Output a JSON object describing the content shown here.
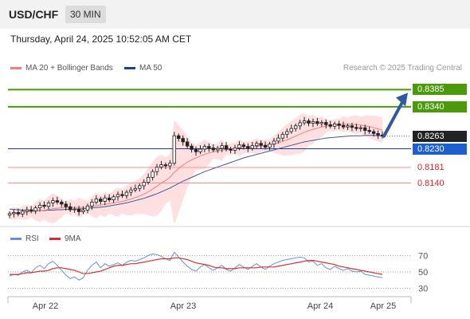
{
  "header": {
    "symbol": "USD/CHF",
    "timeframe": "30 MIN"
  },
  "timestamp": "Thursday, April 24, 2025 10:52:05 AM CET",
  "legend": {
    "ma20": "MA 20 + Bollinger Bands",
    "ma50": "MA 50",
    "credit": "Research © 2025 Trading Central"
  },
  "indicator_legend": {
    "rsi": "RSI",
    "ma9": "9MA"
  },
  "colors": {
    "resistance": "#4a9a0a",
    "support": "#1f3f8f",
    "weak_support": "#ff8f8f",
    "ma20": "#f08080",
    "ma50": "#3a5a9a",
    "bands": "#ffd9d9",
    "rsi": "#6a8fd8",
    "rsi_ma": "#d83030",
    "arrow": "#2e5aa0",
    "current": "#222222"
  },
  "levels": [
    {
      "value": 0.8385,
      "label": "0.8385",
      "style": "resistance"
    },
    {
      "value": 0.834,
      "label": "0.8340",
      "style": "resistance"
    },
    {
      "value": 0.8263,
      "label": "0.8263",
      "style": "current"
    },
    {
      "value": 0.823,
      "label": "0.8230",
      "style": "support"
    },
    {
      "value": 0.8181,
      "label": "0.8181",
      "style": "weak"
    },
    {
      "value": 0.814,
      "label": "0.8140",
      "style": "weak"
    }
  ],
  "rsi_levels": [
    "70",
    "50",
    "30"
  ],
  "x_ticks": [
    "Apr 22",
    "Apr 23",
    "Apr 24",
    "Apr 25"
  ],
  "chart_data": {
    "type": "candlestick",
    "interval": "30 MIN",
    "ylim": [
      0.8045,
      0.8415
    ],
    "closes": [
      0.806,
      0.8063,
      0.8059,
      0.8066,
      0.807,
      0.8067,
      0.8075,
      0.8082,
      0.8079,
      0.8088,
      0.8094,
      0.809,
      0.8085,
      0.8078,
      0.807,
      0.8072,
      0.8065,
      0.8069,
      0.808,
      0.809,
      0.8098,
      0.8092,
      0.8101,
      0.8096,
      0.8104,
      0.811,
      0.8107,
      0.8116,
      0.8122,
      0.8126,
      0.8133,
      0.8142,
      0.8155,
      0.817,
      0.8182,
      0.8188,
      0.8185,
      0.8192,
      0.8264,
      0.8257,
      0.8248,
      0.8237,
      0.8228,
      0.8222,
      0.8229,
      0.8236,
      0.8232,
      0.8227,
      0.8231,
      0.8238,
      0.8229,
      0.8226,
      0.8232,
      0.824,
      0.8236,
      0.8231,
      0.8238,
      0.8244,
      0.8239,
      0.8234,
      0.8242,
      0.825,
      0.8258,
      0.8268,
      0.8275,
      0.8283,
      0.829,
      0.8298,
      0.8303,
      0.8297,
      0.8301,
      0.8296,
      0.8299,
      0.8293,
      0.8289,
      0.8295,
      0.8291,
      0.8287,
      0.829,
      0.8286,
      0.8283,
      0.8285,
      0.8278,
      0.8275,
      0.827,
      0.8266,
      0.8263
    ],
    "ma20": [
      0.8058,
      0.806,
      0.8061,
      0.8062,
      0.8064,
      0.8065,
      0.8066,
      0.8068,
      0.8069,
      0.8071,
      0.8073,
      0.8074,
      0.8075,
      0.8076,
      0.8077,
      0.8076,
      0.8076,
      0.8076,
      0.8077,
      0.8079,
      0.8081,
      0.8082,
      0.8084,
      0.8086,
      0.8088,
      0.809,
      0.8092,
      0.8095,
      0.8098,
      0.8102,
      0.8106,
      0.8111,
      0.8117,
      0.8124,
      0.8132,
      0.814,
      0.8147,
      0.8155,
      0.8168,
      0.8178,
      0.8187,
      0.8195,
      0.8201,
      0.8206,
      0.8211,
      0.8215,
      0.8219,
      0.8222,
      0.8224,
      0.8226,
      0.8228,
      0.8229,
      0.8231,
      0.8232,
      0.8233,
      0.8234,
      0.8235,
      0.8236,
      0.8237,
      0.8238,
      0.824,
      0.8242,
      0.8245,
      0.8249,
      0.8253,
      0.8258,
      0.8263,
      0.8268,
      0.8273,
      0.8277,
      0.8281,
      0.8284,
      0.8287,
      0.8289,
      0.8291,
      0.8292,
      0.8293,
      0.8294,
      0.8294,
      0.8294,
      0.8293,
      0.8292,
      0.829,
      0.8288,
      0.8285,
      0.8282,
      0.8279
    ],
    "ma50": [
      0.8072,
      0.8071,
      0.807,
      0.8069,
      0.8068,
      0.8068,
      0.8068,
      0.8068,
      0.8068,
      0.8069,
      0.8069,
      0.807,
      0.807,
      0.8071,
      0.8071,
      0.8072,
      0.8072,
      0.8073,
      0.8074,
      0.8075,
      0.8076,
      0.8077,
      0.8078,
      0.808,
      0.8082,
      0.8084,
      0.8086,
      0.8088,
      0.8091,
      0.8094,
      0.8097,
      0.81,
      0.8104,
      0.8108,
      0.8112,
      0.8117,
      0.8122,
      0.8127,
      0.8133,
      0.8139,
      0.8145,
      0.815,
      0.8155,
      0.816,
      0.8165,
      0.817,
      0.8174,
      0.8178,
      0.8182,
      0.8186,
      0.819,
      0.8194,
      0.8198,
      0.8202,
      0.8206,
      0.8209,
      0.8212,
      0.8215,
      0.8218,
      0.8221,
      0.8224,
      0.8227,
      0.823,
      0.8233,
      0.8236,
      0.8239,
      0.8242,
      0.8245,
      0.8248,
      0.825,
      0.8252,
      0.8254,
      0.8256,
      0.8258,
      0.8259,
      0.826,
      0.8261,
      0.8262,
      0.8263,
      0.8264,
      0.8264,
      0.8264,
      0.8265,
      0.8265,
      0.8265,
      0.8264,
      0.8264
    ],
    "rsi": [
      45,
      47,
      46,
      50,
      52,
      49,
      55,
      58,
      54,
      60,
      63,
      58,
      52,
      46,
      42,
      44,
      40,
      43,
      52,
      58,
      62,
      55,
      60,
      57,
      59,
      61,
      58,
      62,
      64,
      63,
      65,
      67,
      70,
      72,
      71,
      69,
      66,
      64,
      74,
      68,
      62,
      57,
      53,
      51,
      56,
      59,
      55,
      52,
      55,
      58,
      53,
      51,
      55,
      59,
      56,
      53,
      57,
      60,
      56,
      53,
      57,
      60,
      62,
      64,
      65,
      66,
      67,
      68,
      67,
      62,
      63,
      58,
      60,
      55,
      53,
      57,
      54,
      52,
      54,
      51,
      50,
      51,
      47,
      46,
      45,
      44,
      43
    ],
    "rsi_ma": [
      47,
      47,
      47,
      48,
      49,
      49,
      50,
      51,
      51,
      52,
      54,
      55,
      55,
      54,
      53,
      52,
      50,
      48,
      48,
      49,
      50,
      51,
      53,
      55,
      57,
      58,
      58,
      59,
      60,
      60,
      61,
      62,
      63,
      64,
      65,
      66,
      66,
      66,
      67,
      67,
      66,
      65,
      63,
      61,
      60,
      59,
      58,
      56,
      55,
      55,
      54,
      54,
      54,
      55,
      55,
      55,
      55,
      55,
      56,
      56,
      56,
      56,
      57,
      58,
      59,
      60,
      61,
      62,
      63,
      64,
      64,
      63,
      62,
      61,
      60,
      59,
      57,
      56,
      55,
      54,
      53,
      52,
      51,
      50,
      49,
      48,
      47
    ],
    "rsi_ylim": [
      20,
      80
    ]
  }
}
